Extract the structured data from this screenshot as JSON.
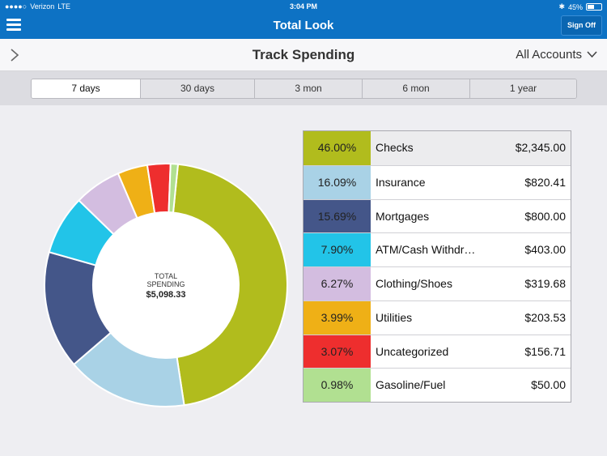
{
  "status_bar": {
    "carrier": "Verizon",
    "network": "LTE",
    "time": "3:04 PM",
    "battery": "45%"
  },
  "header": {
    "title": "Total Look",
    "sign_off_label": "Sign Off"
  },
  "subheader": {
    "title": "Track Spending",
    "account_selector": "All Accounts"
  },
  "periods": [
    {
      "label": "7 days",
      "active": true
    },
    {
      "label": "30 days",
      "active": false
    },
    {
      "label": "3 mon",
      "active": false
    },
    {
      "label": "6 mon",
      "active": false
    },
    {
      "label": "1 year",
      "active": false
    }
  ],
  "total": {
    "label_line1": "TOTAL",
    "label_line2": "SPENDING",
    "amount": "$5,098.33"
  },
  "categories": [
    {
      "percent": "46.00%",
      "name": "Checks",
      "amount": "$2,345.00",
      "color": "#b1bc1d"
    },
    {
      "percent": "16.09%",
      "name": "Insurance",
      "amount": "$820.41",
      "color": "#a9d2e6"
    },
    {
      "percent": "15.69%",
      "name": "Mortgages",
      "amount": "$800.00",
      "color": "#445689"
    },
    {
      "percent": "7.90%",
      "name": "ATM/Cash Withdr…",
      "amount": "$403.00",
      "color": "#22c4e8"
    },
    {
      "percent": "6.27%",
      "name": "Clothing/Shoes",
      "amount": "$319.68",
      "color": "#d3bde0"
    },
    {
      "percent": "3.99%",
      "name": "Utilities",
      "amount": "$203.53",
      "color": "#efb016"
    },
    {
      "percent": "3.07%",
      "name": "Uncategorized",
      "amount": "$156.71",
      "color": "#ee2e2e"
    },
    {
      "percent": "0.98%",
      "name": "Gasoline/Fuel",
      "amount": "$50.00",
      "color": "#b1e091"
    }
  ],
  "chart_data": {
    "type": "pie",
    "title": "TOTAL SPENDING $5,098.33",
    "categories": [
      "Checks",
      "Insurance",
      "Mortgages",
      "ATM/Cash Withdr…",
      "Clothing/Shoes",
      "Utilities",
      "Uncategorized",
      "Gasoline/Fuel"
    ],
    "values": [
      46.0,
      16.09,
      15.69,
      7.9,
      6.27,
      3.99,
      3.07,
      0.98
    ],
    "colors": [
      "#b1bc1d",
      "#a9d2e6",
      "#445689",
      "#22c4e8",
      "#d3bde0",
      "#efb016",
      "#ee2e2e",
      "#b1e091"
    ]
  }
}
